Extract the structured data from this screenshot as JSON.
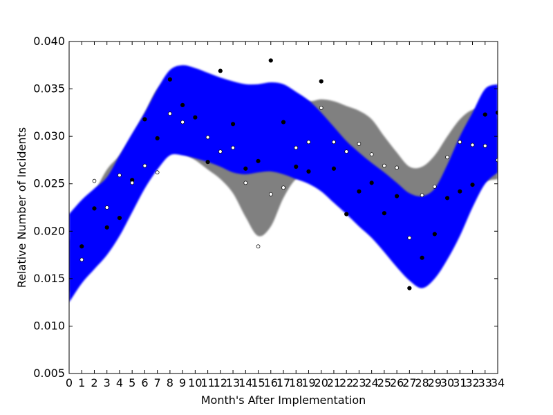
{
  "chart_data": {
    "type": "scatter",
    "title": "",
    "xlabel": "Month's After Implementation",
    "ylabel": "Relative Number of Incidents",
    "xlim": [
      0,
      34
    ],
    "ylim": [
      0.005,
      0.04
    ],
    "grid": false,
    "x_ticks": [
      "0",
      "1",
      "2",
      "3",
      "4",
      "5",
      "6",
      "7",
      "8",
      "9",
      "10",
      "11",
      "12",
      "13",
      "14",
      "15",
      "16",
      "17",
      "18",
      "19",
      "20",
      "21",
      "22",
      "23",
      "24",
      "25",
      "26",
      "27",
      "28",
      "29",
      "30",
      "31",
      "32",
      "33",
      "34"
    ],
    "y_ticks": [
      "0.005",
      "0.010",
      "0.015",
      "0.020",
      "0.025",
      "0.030",
      "0.035",
      "0.040"
    ],
    "bands": [
      {
        "color": "#808080",
        "x": [
          0,
          1,
          2,
          3,
          4,
          5,
          6,
          7,
          8,
          9,
          10,
          11,
          12,
          13,
          14,
          15,
          16,
          17,
          18,
          19,
          20,
          21,
          22,
          23,
          24,
          25,
          26,
          27,
          28,
          29,
          30,
          31,
          32,
          33,
          34
        ],
        "lower": [
          0.0135,
          0.0155,
          0.0185,
          0.021,
          0.023,
          0.024,
          0.0265,
          0.028,
          0.0285,
          0.0282,
          0.0275,
          0.0265,
          0.0255,
          0.024,
          0.0215,
          0.0195,
          0.0205,
          0.0235,
          0.0255,
          0.0258,
          0.0262,
          0.0262,
          0.0258,
          0.0252,
          0.0245,
          0.0233,
          0.0217,
          0.02,
          0.0195,
          0.02,
          0.0208,
          0.0222,
          0.024,
          0.0252,
          0.0255
        ],
        "upper": [
          0.019,
          0.021,
          0.024,
          0.0265,
          0.028,
          0.03,
          0.0325,
          0.035,
          0.036,
          0.0362,
          0.036,
          0.0357,
          0.0355,
          0.0352,
          0.035,
          0.035,
          0.0352,
          0.035,
          0.0343,
          0.0337,
          0.0339,
          0.0337,
          0.0332,
          0.0327,
          0.0318,
          0.03,
          0.0283,
          0.0268,
          0.0268,
          0.028,
          0.03,
          0.0318,
          0.0328,
          0.0328,
          0.0318
        ]
      },
      {
        "color": "#0000ff",
        "x": [
          0,
          1,
          2,
          3,
          4,
          5,
          6,
          7,
          8,
          9,
          10,
          11,
          12,
          13,
          14,
          15,
          16,
          17,
          18,
          19,
          20,
          21,
          22,
          23,
          24,
          25,
          26,
          27,
          28,
          29,
          30,
          31,
          32,
          33,
          34
        ],
        "lower": [
          0.0125,
          0.0145,
          0.016,
          0.0175,
          0.0195,
          0.022,
          0.0245,
          0.0265,
          0.028,
          0.028,
          0.0277,
          0.0273,
          0.0268,
          0.0262,
          0.026,
          0.0262,
          0.0263,
          0.026,
          0.0255,
          0.025,
          0.0242,
          0.023,
          0.0218,
          0.0205,
          0.0193,
          0.0178,
          0.0162,
          0.0148,
          0.014,
          0.015,
          0.017,
          0.0195,
          0.0225,
          0.025,
          0.0262
        ],
        "upper": [
          0.0218,
          0.0233,
          0.0245,
          0.0257,
          0.028,
          0.0303,
          0.0325,
          0.035,
          0.037,
          0.0375,
          0.0372,
          0.0367,
          0.0362,
          0.0358,
          0.0355,
          0.0355,
          0.0357,
          0.0355,
          0.0347,
          0.0338,
          0.0325,
          0.031,
          0.0295,
          0.0283,
          0.0272,
          0.0262,
          0.0251,
          0.024,
          0.0237,
          0.0245,
          0.027,
          0.03,
          0.0325,
          0.035,
          0.0355
        ]
      }
    ],
    "series": [
      {
        "marker": "filled-circle",
        "color": "#000000",
        "points": [
          [
            1,
            0.0184
          ],
          [
            2,
            0.0224
          ],
          [
            3,
            0.0204
          ],
          [
            4,
            0.0214
          ],
          [
            5,
            0.0254
          ],
          [
            6,
            0.0318
          ],
          [
            7,
            0.0298
          ],
          [
            8,
            0.036
          ],
          [
            9,
            0.0333
          ],
          [
            10,
            0.032
          ],
          [
            11,
            0.0273
          ],
          [
            12,
            0.0369
          ],
          [
            13,
            0.0313
          ],
          [
            14,
            0.0266
          ],
          [
            15,
            0.0274
          ],
          [
            16,
            0.038
          ],
          [
            17,
            0.0315
          ],
          [
            18,
            0.0268
          ],
          [
            19,
            0.0263
          ],
          [
            20,
            0.0358
          ],
          [
            21,
            0.0266
          ],
          [
            22,
            0.0218
          ],
          [
            23,
            0.0242
          ],
          [
            24,
            0.0251
          ],
          [
            25,
            0.0219
          ],
          [
            26,
            0.0237
          ],
          [
            27,
            0.014
          ],
          [
            28,
            0.0172
          ],
          [
            29,
            0.0197
          ],
          [
            30,
            0.0235
          ],
          [
            31,
            0.0242
          ],
          [
            32,
            0.0249
          ],
          [
            33,
            0.0323
          ],
          [
            34,
            0.0325
          ]
        ]
      },
      {
        "marker": "open-circle",
        "color": "#000000",
        "points": [
          [
            1,
            0.017
          ],
          [
            2,
            0.0253
          ],
          [
            3,
            0.0225
          ],
          [
            4,
            0.0259
          ],
          [
            5,
            0.0251
          ],
          [
            6,
            0.0269
          ],
          [
            7,
            0.0262
          ],
          [
            8,
            0.0324
          ],
          [
            9,
            0.0315
          ],
          [
            11,
            0.0299
          ],
          [
            12,
            0.0284
          ],
          [
            13,
            0.0288
          ],
          [
            14,
            0.0251
          ],
          [
            15,
            0.0184
          ],
          [
            16,
            0.0239
          ],
          [
            17,
            0.0246
          ],
          [
            18,
            0.0288
          ],
          [
            19,
            0.0294
          ],
          [
            20,
            0.033
          ],
          [
            21,
            0.0294
          ],
          [
            22,
            0.0284
          ],
          [
            23,
            0.0292
          ],
          [
            24,
            0.0281
          ],
          [
            25,
            0.0269
          ],
          [
            26,
            0.0267
          ],
          [
            27,
            0.0193
          ],
          [
            28,
            0.0238
          ],
          [
            29,
            0.0247
          ],
          [
            30,
            0.0278
          ],
          [
            31,
            0.0294
          ],
          [
            32,
            0.0291
          ],
          [
            33,
            0.029
          ],
          [
            34,
            0.0275
          ]
        ]
      }
    ]
  }
}
